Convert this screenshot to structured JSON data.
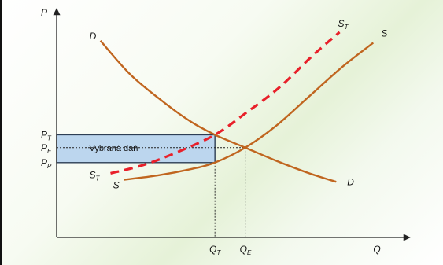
{
  "chart_data": {
    "type": "line",
    "title": "",
    "axes": {
      "y": {
        "letter": "P",
        "subscript": ""
      },
      "x": {
        "letter": "Q",
        "subscript": ""
      }
    },
    "xlim": [
      0,
      10
    ],
    "ylim": [
      0,
      10
    ],
    "price_ticks": [
      {
        "letter": "P",
        "subscript": "T",
        "value": 4.8
      },
      {
        "letter": "P",
        "subscript": "E",
        "value": 4.2
      },
      {
        "letter": "P",
        "subscript": "P",
        "value": 3.5
      }
    ],
    "quantity_ticks": [
      {
        "letter": "Q",
        "subscript": "T",
        "value": 4.7
      },
      {
        "letter": "Q",
        "subscript": "E",
        "value": 5.6
      }
    ],
    "series": [
      {
        "key": "demand",
        "label": {
          "letter": "D",
          "subscript": ""
        },
        "color": "#c0651f",
        "dashed": false,
        "x": [
          1.3,
          2.2,
          3.2,
          4.0,
          4.7,
          5.6,
          6.5,
          7.5,
          8.3
        ],
        "y": [
          9.2,
          7.6,
          6.3,
          5.4,
          4.8,
          4.2,
          3.6,
          3.0,
          2.6
        ]
      },
      {
        "key": "supply",
        "label": {
          "letter": "S",
          "subscript": ""
        },
        "color": "#c0651f",
        "dashed": false,
        "x": [
          2.0,
          3.0,
          4.0,
          4.7,
          5.6,
          6.5,
          7.5,
          8.5,
          9.4
        ],
        "y": [
          2.7,
          2.9,
          3.2,
          3.5,
          4.2,
          5.2,
          6.6,
          8.0,
          9.1
        ]
      },
      {
        "key": "supply_with_tax",
        "label": {
          "letter": "S",
          "subscript": "T"
        },
        "color": "#e8202a",
        "dashed": true,
        "x": [
          1.6,
          2.6,
          3.6,
          4.7,
          5.6,
          6.6,
          7.6,
          8.4
        ],
        "y": [
          3.0,
          3.4,
          4.0,
          4.8,
          5.8,
          7.0,
          8.5,
          9.6
        ]
      }
    ],
    "tax_area": {
      "label": "Vybraná daň",
      "fill": "#bcd6ee",
      "border": "#2e3f55"
    },
    "axis_color": "#222222",
    "guide_color": "#222222"
  }
}
